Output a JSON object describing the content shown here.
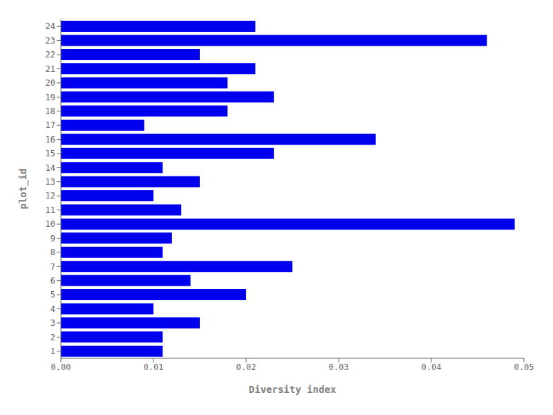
{
  "chart_data": {
    "type": "bar",
    "orientation": "horizontal",
    "categories": [
      "1",
      "2",
      "3",
      "4",
      "5",
      "6",
      "7",
      "8",
      "9",
      "10",
      "11",
      "12",
      "13",
      "14",
      "15",
      "16",
      "17",
      "18",
      "19",
      "20",
      "21",
      "22",
      "23",
      "24"
    ],
    "values": [
      0.011,
      0.011,
      0.015,
      0.01,
      0.02,
      0.014,
      0.025,
      0.011,
      0.012,
      0.049,
      0.013,
      0.01,
      0.015,
      0.011,
      0.023,
      0.034,
      0.009,
      0.018,
      0.023,
      0.018,
      0.021,
      0.015,
      0.046,
      0.021
    ],
    "color": "#0000ee",
    "xlabel": "Diversity index",
    "ylabel": "plot_id",
    "xlim": [
      0.0,
      0.05
    ],
    "xticks": [
      {
        "value": 0.0,
        "label": "0.00"
      },
      {
        "value": 0.01,
        "label": "0.01"
      },
      {
        "value": 0.02,
        "label": "0.02"
      },
      {
        "value": 0.03,
        "label": "0.03"
      },
      {
        "value": 0.04,
        "label": "0.04"
      },
      {
        "value": 0.05,
        "label": "0.05"
      }
    ],
    "grid": false
  }
}
